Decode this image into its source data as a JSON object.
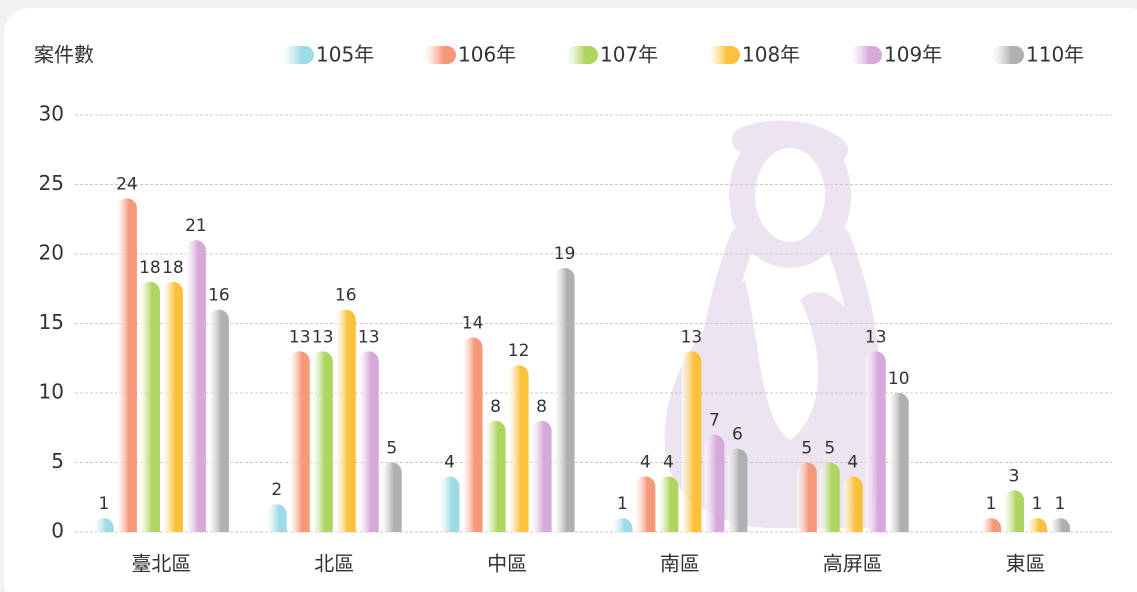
{
  "chart_data": {
    "type": "bar",
    "y_label": "案件數",
    "categories": [
      "臺北區",
      "北區",
      "中區",
      "南區",
      "高屏區",
      "東區"
    ],
    "series": [
      {
        "name": "105年",
        "color": "#9fdbe6",
        "values": [
          1,
          2,
          4,
          1,
          null,
          null
        ]
      },
      {
        "name": "106年",
        "color": "#f6997a",
        "values": [
          24,
          13,
          14,
          4,
          5,
          1
        ]
      },
      {
        "name": "107年",
        "color": "#aed461",
        "values": [
          18,
          13,
          8,
          4,
          5,
          3
        ]
      },
      {
        "name": "108年",
        "color": "#fcc13c",
        "values": [
          18,
          16,
          12,
          13,
          4,
          1
        ]
      },
      {
        "name": "109年",
        "color": "#d6a9da",
        "values": [
          21,
          13,
          8,
          7,
          13,
          null
        ]
      },
      {
        "name": "110年",
        "color": "#b0b0b2",
        "values": [
          16,
          5,
          19,
          6,
          10,
          1
        ]
      }
    ],
    "ylim": [
      0,
      30
    ],
    "yticks": [
      0,
      5,
      10,
      15,
      20,
      25,
      30
    ],
    "grid": true
  }
}
